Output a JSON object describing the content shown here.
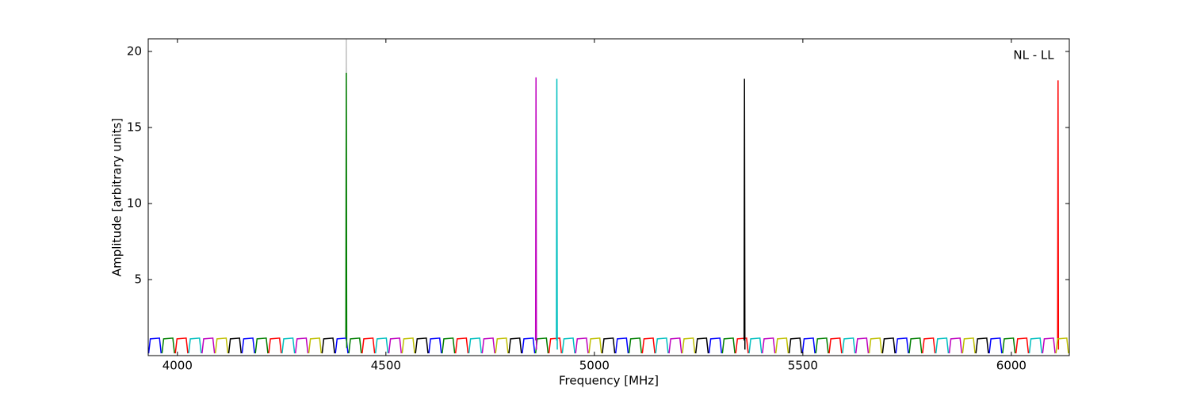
{
  "chart_data": {
    "type": "line",
    "xlabel": "Frequency [MHz]",
    "ylabel": "Amplitude [arbitrary units]",
    "annotation": "NL - LL",
    "xlim": [
      3930,
      6139
    ],
    "ylim": [
      0,
      20.83
    ],
    "xticks": [
      4000,
      4500,
      5000,
      5500,
      6000
    ],
    "yticks": [
      5,
      10,
      15,
      20
    ],
    "series": [
      {
        "color": "#bfbfbf",
        "x": [
          4404,
          4405,
          4406
        ],
        "values": [
          1.0,
          20.8,
          1.0
        ]
      },
      {
        "color": "#0000ff",
        "x": [
          3931,
          3935,
          3957,
          3961,
          null,
          4155,
          4159,
          4181,
          4185,
          null,
          4379,
          4383,
          4405,
          4409,
          null,
          4603,
          4607,
          4629,
          4633,
          null,
          4827,
          4831,
          4853,
          4857,
          null,
          5051,
          5055,
          5077,
          5081,
          null,
          5275,
          5279,
          5301,
          5305,
          null,
          5499,
          5503,
          5525,
          5529,
          null,
          5723,
          5727,
          5749,
          5753,
          null,
          5947,
          5951,
          5973,
          5977
        ],
        "values": [
          0.15,
          1.1,
          1.15,
          0.15,
          null,
          0.15,
          1.1,
          1.15,
          0.15,
          null,
          0.15,
          1.1,
          1.15,
          0.15,
          null,
          0.15,
          1.1,
          1.15,
          0.15,
          null,
          0.15,
          1.1,
          1.15,
          0.15,
          null,
          0.15,
          1.1,
          1.15,
          0.15,
          null,
          0.15,
          1.1,
          1.15,
          0.15,
          null,
          0.15,
          1.1,
          1.15,
          0.15,
          null,
          0.15,
          1.1,
          1.15,
          0.15,
          null,
          0.15,
          1.1,
          1.15,
          0.15
        ]
      },
      {
        "color": "#007f00",
        "x": [
          3963,
          3967,
          3989,
          3993,
          null,
          4187,
          4191,
          4213,
          4217,
          null,
          4404,
          4405,
          4406,
          null,
          4411,
          4415,
          4437,
          4441,
          null,
          4635,
          4639,
          4661,
          4665,
          null,
          4859,
          4863,
          4885,
          4889,
          null,
          5083,
          5087,
          5109,
          5113,
          null,
          5307,
          5311,
          5333,
          5337,
          null,
          5531,
          5535,
          5557,
          5561,
          null,
          5755,
          5759,
          5781,
          5785,
          null,
          5979,
          5983,
          6005,
          6009
        ],
        "values": [
          0.15,
          1.1,
          1.15,
          0.15,
          null,
          0.15,
          1.1,
          1.15,
          0.15,
          null,
          1.2,
          18.6,
          0.5,
          null,
          0.15,
          1.1,
          1.15,
          0.15,
          null,
          0.15,
          1.1,
          1.15,
          0.15,
          null,
          0.15,
          1.1,
          1.15,
          0.15,
          null,
          0.15,
          1.1,
          1.15,
          0.15,
          null,
          0.15,
          1.1,
          1.15,
          0.15,
          null,
          0.15,
          1.1,
          1.15,
          0.15,
          null,
          0.15,
          1.1,
          1.15,
          0.15,
          null,
          0.15,
          1.1,
          1.15,
          0.15
        ]
      },
      {
        "color": "#ff0000",
        "x": [
          3995,
          3999,
          4021,
          4025,
          null,
          4219,
          4223,
          4245,
          4249,
          null,
          4443,
          4447,
          4469,
          4473,
          null,
          4667,
          4671,
          4693,
          4697,
          null,
          4891,
          4895,
          4917,
          4921,
          null,
          5115,
          5119,
          5141,
          5145,
          null,
          5339,
          5343,
          5365,
          5369,
          null,
          5563,
          5567,
          5589,
          5593,
          null,
          5787,
          5791,
          5813,
          5817,
          null,
          6011,
          6015,
          6037,
          6041,
          null,
          6111,
          6112,
          6113
        ],
        "values": [
          0.15,
          1.1,
          1.15,
          0.15,
          null,
          0.15,
          1.1,
          1.15,
          0.15,
          null,
          0.15,
          1.1,
          1.15,
          0.15,
          null,
          0.15,
          1.1,
          1.15,
          0.15,
          null,
          0.15,
          1.1,
          1.15,
          0.15,
          null,
          0.15,
          1.1,
          1.15,
          0.15,
          null,
          0.15,
          1.1,
          1.15,
          0.15,
          null,
          0.15,
          1.1,
          1.15,
          0.15,
          null,
          0.15,
          1.1,
          1.15,
          0.15,
          null,
          0.15,
          1.1,
          1.15,
          0.15,
          null,
          1.0,
          18.1,
          0.4
        ]
      },
      {
        "color": "#00bfbf",
        "x": [
          4027,
          4031,
          4053,
          4057,
          null,
          4251,
          4255,
          4277,
          4281,
          null,
          4475,
          4479,
          4501,
          4505,
          null,
          4699,
          4703,
          4725,
          4729,
          null,
          4909,
          4910,
          4911,
          null,
          4923,
          4927,
          4949,
          4953,
          null,
          5147,
          5151,
          5173,
          5177,
          null,
          5371,
          5375,
          5397,
          5401,
          null,
          5595,
          5599,
          5621,
          5625,
          null,
          5819,
          5823,
          5845,
          5849,
          null,
          6043,
          6047,
          6069,
          6073
        ],
        "values": [
          0.15,
          1.1,
          1.15,
          0.15,
          null,
          0.15,
          1.1,
          1.15,
          0.15,
          null,
          0.15,
          1.1,
          1.15,
          0.15,
          null,
          0.15,
          1.1,
          1.15,
          0.15,
          null,
          1.0,
          18.2,
          0.4,
          null,
          0.15,
          1.1,
          1.15,
          0.15,
          null,
          0.15,
          1.1,
          1.15,
          0.15,
          null,
          0.15,
          1.1,
          1.15,
          0.15,
          null,
          0.15,
          1.1,
          1.15,
          0.15,
          null,
          0.15,
          1.1,
          1.15,
          0.15,
          null,
          0.15,
          1.1,
          1.15,
          0.15
        ]
      },
      {
        "color": "#bf00bf",
        "x": [
          4059,
          4063,
          4085,
          4089,
          null,
          4283,
          4287,
          4309,
          4313,
          null,
          4507,
          4511,
          4533,
          4537,
          null,
          4731,
          4735,
          4757,
          4761,
          null,
          4859,
          4860,
          4861,
          null,
          4955,
          4959,
          4981,
          4985,
          null,
          5179,
          5183,
          5205,
          5209,
          null,
          5403,
          5407,
          5429,
          5433,
          null,
          5627,
          5631,
          5653,
          5657,
          null,
          5851,
          5855,
          5877,
          5881,
          null,
          6075,
          6079,
          6101,
          6105
        ],
        "values": [
          0.15,
          1.1,
          1.15,
          0.15,
          null,
          0.15,
          1.1,
          1.15,
          0.15,
          null,
          0.15,
          1.1,
          1.15,
          0.15,
          null,
          0.15,
          1.1,
          1.15,
          0.15,
          null,
          1.0,
          18.3,
          0.4,
          null,
          0.15,
          1.1,
          1.15,
          0.15,
          null,
          0.15,
          1.1,
          1.15,
          0.15,
          null,
          0.15,
          1.1,
          1.15,
          0.15,
          null,
          0.15,
          1.1,
          1.15,
          0.15,
          null,
          0.15,
          1.1,
          1.15,
          0.15,
          null,
          0.15,
          1.1,
          1.15,
          0.15
        ]
      },
      {
        "color": "#bfbf00",
        "x": [
          4091,
          4095,
          4117,
          4121,
          null,
          4315,
          4319,
          4341,
          4345,
          null,
          4539,
          4543,
          4565,
          4569,
          null,
          4763,
          4767,
          4789,
          4793,
          null,
          4987,
          4991,
          5013,
          5017,
          null,
          5211,
          5215,
          5237,
          5241,
          null,
          5435,
          5439,
          5461,
          5465,
          null,
          5659,
          5663,
          5685,
          5689,
          null,
          5883,
          5887,
          5909,
          5913,
          null,
          6107,
          6111,
          6133,
          6137
        ],
        "values": [
          0.15,
          1.1,
          1.15,
          0.15,
          null,
          0.15,
          1.1,
          1.15,
          0.15,
          null,
          0.15,
          1.1,
          1.15,
          0.15,
          null,
          0.15,
          1.1,
          1.15,
          0.15,
          null,
          0.15,
          1.1,
          1.15,
          0.15,
          null,
          0.15,
          1.1,
          1.15,
          0.15,
          null,
          0.15,
          1.1,
          1.15,
          0.15,
          null,
          0.15,
          1.1,
          1.15,
          0.15,
          null,
          0.15,
          1.1,
          1.15,
          0.15,
          null,
          0.15,
          1.1,
          1.15,
          0.15
        ]
      },
      {
        "color": "#000000",
        "x": [
          4123,
          4127,
          4149,
          4153,
          null,
          4347,
          4351,
          4373,
          4377,
          null,
          4571,
          4575,
          4597,
          4601,
          null,
          4795,
          4799,
          4821,
          4825,
          null,
          5019,
          5023,
          5045,
          5049,
          null,
          5243,
          5247,
          5269,
          5273,
          null,
          5359,
          5360,
          5361,
          null,
          5467,
          5471,
          5493,
          5497,
          null,
          5691,
          5695,
          5717,
          5721,
          null,
          5915,
          5919,
          5941,
          5945
        ],
        "values": [
          0.15,
          1.1,
          1.15,
          0.15,
          null,
          0.15,
          1.1,
          1.15,
          0.15,
          null,
          0.15,
          1.1,
          1.15,
          0.15,
          null,
          0.15,
          1.1,
          1.15,
          0.15,
          null,
          0.15,
          1.1,
          1.15,
          0.15,
          null,
          0.15,
          1.1,
          1.15,
          0.15,
          null,
          1.0,
          18.2,
          0.4,
          null,
          0.15,
          1.1,
          1.15,
          0.15,
          null,
          0.15,
          1.1,
          1.15,
          0.15,
          null,
          0.15,
          1.1,
          1.15,
          0.15
        ]
      }
    ]
  }
}
